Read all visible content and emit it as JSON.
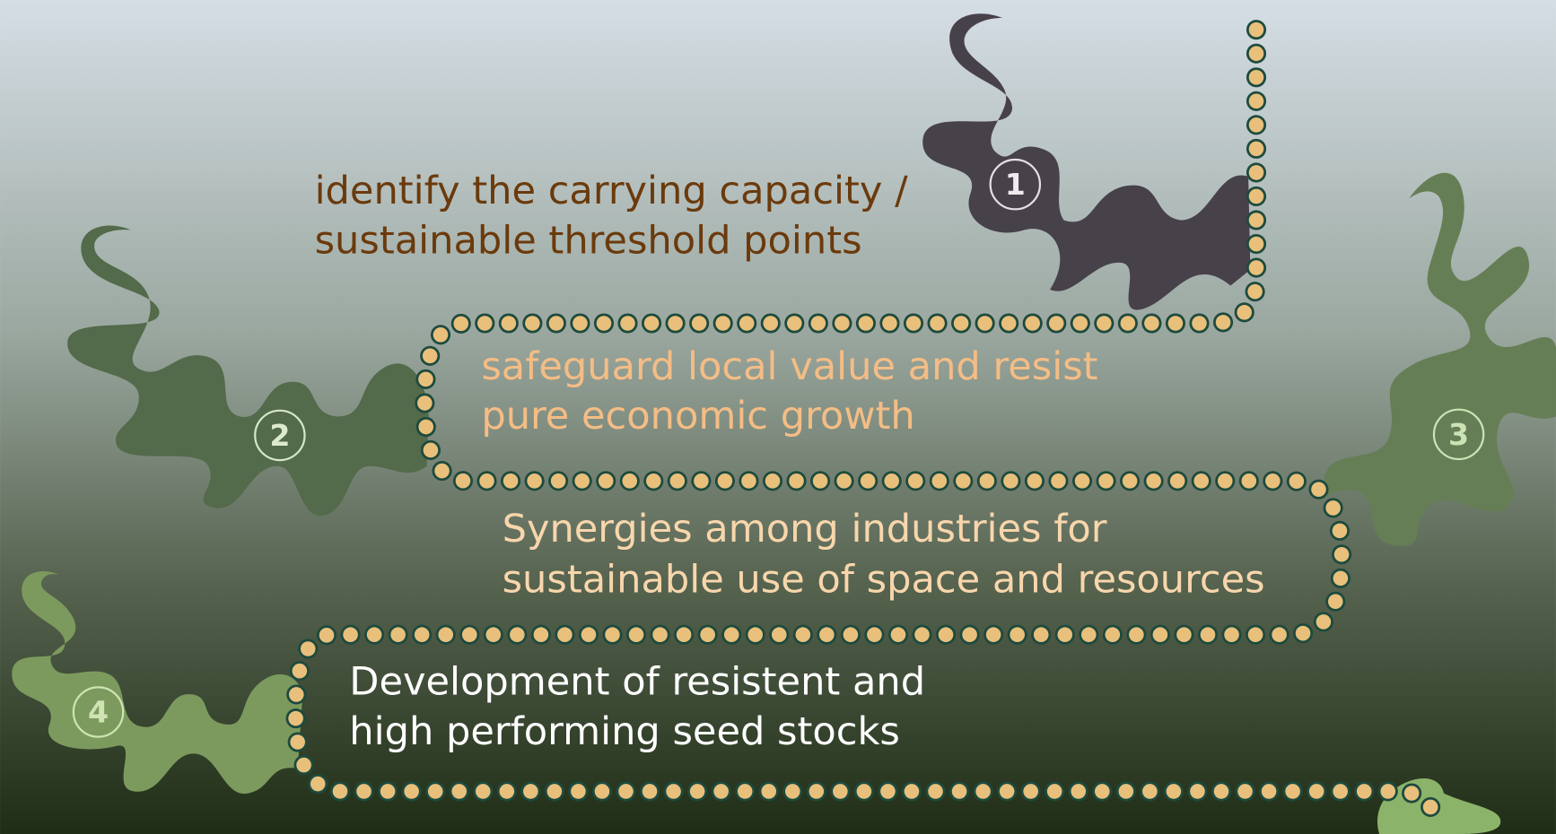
{
  "steps": [
    {
      "number": "1",
      "lines": [
        "identify the carrying capacity /",
        "sustainable threshold points"
      ]
    },
    {
      "number": "2",
      "lines": [
        "safeguard local value and resist",
        "pure economic growth"
      ]
    },
    {
      "number": "3",
      "lines": [
        "Synergies among industries for",
        "sustainable use of space and resources"
      ]
    },
    {
      "number": "4",
      "lines": [
        "Development of resistent and",
        "high performing seed stocks"
      ]
    }
  ]
}
